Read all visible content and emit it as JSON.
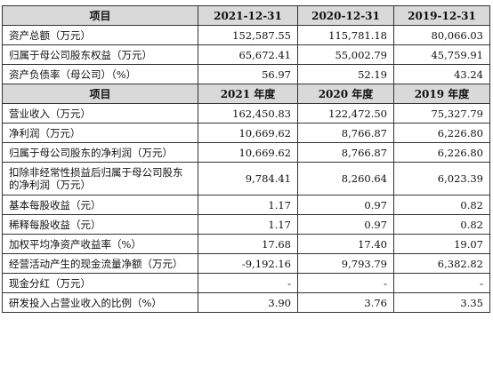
{
  "header1": [
    "项目",
    "2021-12-31",
    "2020-12-31",
    "2019-12-31"
  ],
  "section1": [
    {
      "label": "资产总额（万元）",
      "v1": "152,587.55",
      "v2": "115,781.18",
      "v3": "80,066.03"
    },
    {
      "label": "归属于母公司股东权益（万元）",
      "v1": "65,672.41",
      "v2": "55,002.79",
      "v3": "45,759.91"
    },
    {
      "label": "资产负债率（母公司）（%）",
      "v1": "56.97",
      "v2": "52.19",
      "v3": "43.24"
    }
  ],
  "header2": [
    "项目",
    "2021 年度",
    "2020 年度",
    "2019 年度"
  ],
  "section2": [
    {
      "label": "营业收入（万元）",
      "v1": "162,450.83",
      "v2": "122,472.50",
      "v3": "75,327.79"
    },
    {
      "label": "净利润（万元）",
      "v1": "10,669.62",
      "v2": "8,766.87",
      "v3": "6,226.80"
    },
    {
      "label": "归属于母公司股东的净利润（万元）",
      "v1": "10,669.62",
      "v2": "8,766.87",
      "v3": "6,226.80"
    },
    {
      "label": "扣除非经常性损益后归属于母公司股东的净利润（万元）",
      "v1": "9,784.41",
      "v2": "8,260.64",
      "v3": "6,023.39"
    },
    {
      "label": "基本每股收益（元）",
      "v1": "1.17",
      "v2": "0.97",
      "v3": "0.82"
    },
    {
      "label": "稀释每股收益（元）",
      "v1": "1.17",
      "v2": "0.97",
      "v3": "0.82"
    },
    {
      "label": "加权平均净资产收益率（%）",
      "v1": "17.68",
      "v2": "17.40",
      "v3": "19.07"
    },
    {
      "label": "经营活动产生的现金流量净额（万元）",
      "v1": "-9,192.16",
      "v2": "9,793.79",
      "v3": "6,382.82"
    },
    {
      "label": "现金分红（万元）",
      "v1": "-",
      "v2": "-",
      "v3": "-"
    },
    {
      "label": "研发投入占营业收入的比例（%）",
      "v1": "3.90",
      "v2": "3.76",
      "v3": "3.35"
    }
  ]
}
